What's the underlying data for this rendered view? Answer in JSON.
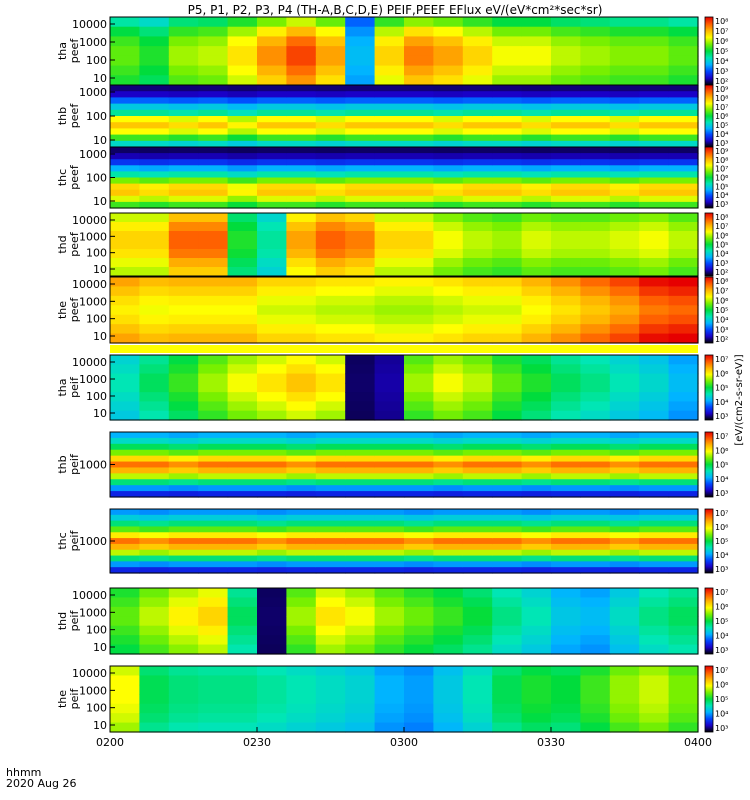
{
  "chart_data": {
    "type": "heatmap",
    "title": "P5, P1, P2, P3, P4 (TH-A,B,C,D,E) PEIF,PEEF EFlux eV/(eV*cm²*sec*sr)",
    "x_label_line1": "hhmm",
    "x_label_line2": "2020 Aug 26",
    "x_ticks": [
      "0200",
      "0230",
      "0300",
      "0330",
      "0400"
    ],
    "x_range": [
      "02:00",
      "04:00"
    ],
    "colorbar_label": "[eV/(cm2-s-sr-eV)]",
    "palette": [
      "#000000",
      "#1a00c8",
      "#0046ff",
      "#00b4ff",
      "#00e6b4",
      "#00dc3c",
      "#78f000",
      "#ffff00",
      "#ffb400",
      "#ff5a00",
      "#e60000"
    ],
    "panels": [
      {
        "label_top": "tha",
        "label_bottom": "peef",
        "y_ticks": [
          "10000",
          "1000",
          "100",
          "10"
        ],
        "y_scale": "log",
        "colorbar_ticks": [
          "10⁸",
          "10⁷",
          "10⁶",
          "10⁵",
          "10⁴",
          "10³",
          "10²"
        ],
        "columns": [
          0.55,
          0.5,
          0.6,
          0.62,
          0.7,
          0.8,
          0.88,
          0.78,
          0.3,
          0.72,
          0.82,
          0.78,
          0.72,
          0.66,
          0.66,
          0.62,
          0.6,
          0.58,
          0.58,
          0.55
        ],
        "rows": [
          0.75,
          0.9,
          1.0,
          1.05,
          1.05,
          1.0,
          0.95
        ]
      },
      {
        "label_top": "thb",
        "label_bottom": "peef",
        "y_ticks": [
          "1000",
          "100",
          "10"
        ],
        "y_scale": "log",
        "colorbar_ticks": [
          "10⁹",
          "10⁸",
          "10⁷",
          "10⁶",
          "10⁵",
          "10⁴",
          "10³"
        ],
        "columns": [
          0.5,
          0.5,
          0.48,
          0.5,
          0.46,
          0.5,
          0.5,
          0.48,
          0.5,
          0.5,
          0.5,
          0.48,
          0.5,
          0.5,
          0.48,
          0.5,
          0.5,
          0.48,
          0.5,
          0.5
        ],
        "rows": [
          0.12,
          0.2,
          0.45,
          0.68,
          0.85,
          1.4,
          1.55,
          1.4,
          1.1,
          0.75
        ]
      },
      {
        "label_top": "thc",
        "label_bottom": "peef",
        "y_ticks": [
          "1000",
          "100",
          "10"
        ],
        "y_scale": "log",
        "colorbar_ticks": [
          "10⁹",
          "10⁸",
          "10⁷",
          "10⁶",
          "10⁵",
          "10⁴",
          "10³"
        ],
        "columns": [
          0.5,
          0.48,
          0.5,
          0.5,
          0.46,
          0.5,
          0.5,
          0.48,
          0.5,
          0.5,
          0.5,
          0.48,
          0.5,
          0.5,
          0.48,
          0.5,
          0.5,
          0.48,
          0.5,
          0.5
        ],
        "rows": [
          0.1,
          0.18,
          0.35,
          0.6,
          0.82,
          1.2,
          1.5,
          1.55,
          1.35,
          1.1
        ]
      },
      {
        "label_top": "thd",
        "label_bottom": "peef",
        "y_ticks": [
          "10000",
          "1000",
          "100",
          "10"
        ],
        "y_scale": "log",
        "colorbar_ticks": [
          "10⁸",
          "10⁷",
          "10⁶",
          "10⁵",
          "10⁴",
          "10³",
          "10²"
        ],
        "columns": [
          0.72,
          0.72,
          0.85,
          0.85,
          0.5,
          0.4,
          0.78,
          0.85,
          0.82,
          0.72,
          0.72,
          0.66,
          0.62,
          0.6,
          0.64,
          0.62,
          0.62,
          0.64,
          0.66,
          0.62
        ],
        "rows": [
          0.92,
          1.0,
          1.05,
          1.05,
          1.02,
          0.95,
          0.9
        ]
      },
      {
        "label_top": "the",
        "label_bottom": "peef",
        "y_ticks": [
          "10000",
          "1000",
          "100",
          "10"
        ],
        "y_scale": "log",
        "colorbar_ticks": [
          "10⁸",
          "10⁷",
          "10⁶",
          "10⁵",
          "10⁴",
          "10³",
          "10²"
        ],
        "columns": [
          0.78,
          0.75,
          0.76,
          0.76,
          0.76,
          0.72,
          0.72,
          0.7,
          0.7,
          0.68,
          0.68,
          0.7,
          0.72,
          0.72,
          0.76,
          0.8,
          0.84,
          0.88,
          0.94,
          0.96
        ],
        "rows": [
          1.05,
          1.0,
          0.95,
          0.92,
          0.95,
          1.0,
          1.05
        ]
      },
      {
        "label_top": "tha",
        "label_bottom": "peif",
        "y_ticks": [
          "10000",
          "1000",
          "100",
          "10"
        ],
        "y_scale": "log",
        "colorbar_ticks": [
          "10⁷",
          "10⁶",
          "10⁵",
          "10⁴",
          "10³"
        ],
        "columns": [
          0.38,
          0.45,
          0.52,
          0.6,
          0.66,
          0.7,
          0.74,
          0.7,
          0.05,
          0.08,
          0.6,
          0.66,
          0.62,
          0.55,
          0.5,
          0.45,
          0.42,
          0.38,
          0.35,
          0.3
        ],
        "rows": [
          0.95,
          1.0,
          1.05,
          1.05,
          1.0,
          0.95,
          0.9
        ]
      },
      {
        "label_top": "thb",
        "label_bottom": "peif",
        "y_ticks": [
          "1000"
        ],
        "y_scale": "log",
        "colorbar_ticks": [
          "10⁷",
          "10⁶",
          "10⁵",
          "10⁴",
          "10³"
        ],
        "columns": [
          0.5,
          0.5,
          0.48,
          0.5,
          0.5,
          0.5,
          0.48,
          0.5,
          0.5,
          0.5,
          0.5,
          0.48,
          0.5,
          0.5,
          0.48,
          0.5,
          0.5,
          0.48,
          0.5,
          0.5
        ],
        "rows": [
          0.6,
          0.75,
          0.95,
          1.2,
          1.5,
          1.75,
          1.6,
          1.3,
          0.9,
          0.55,
          0.3
        ]
      },
      {
        "label_top": "thc",
        "label_bottom": "peif",
        "y_ticks": [
          "1000"
        ],
        "y_scale": "log",
        "colorbar_ticks": [
          "10⁷",
          "10⁶",
          "10⁵",
          "10⁴",
          "10³"
        ],
        "columns": [
          0.5,
          0.48,
          0.5,
          0.5,
          0.5,
          0.48,
          0.5,
          0.5,
          0.5,
          0.5,
          0.48,
          0.5,
          0.5,
          0.5,
          0.48,
          0.5,
          0.5,
          0.48,
          0.5,
          0.5
        ],
        "rows": [
          0.55,
          0.7,
          0.9,
          1.15,
          1.45,
          1.75,
          1.6,
          1.3,
          0.9,
          0.55,
          0.3
        ]
      },
      {
        "label_top": "thd",
        "label_bottom": "peif",
        "y_ticks": [
          "10000",
          "1000",
          "100",
          "10"
        ],
        "y_scale": "log",
        "colorbar_ticks": [
          "10⁷",
          "10⁶",
          "10⁵",
          "10⁴",
          "10³"
        ],
        "columns": [
          0.55,
          0.62,
          0.68,
          0.72,
          0.45,
          0.05,
          0.6,
          0.7,
          0.66,
          0.6,
          0.56,
          0.52,
          0.48,
          0.42,
          0.38,
          0.32,
          0.3,
          0.36,
          0.42,
          0.45
        ],
        "rows": [
          0.95,
          1.0,
          1.05,
          1.05,
          1.0,
          0.95,
          0.9
        ]
      },
      {
        "label_top": "the",
        "label_bottom": "peif",
        "y_ticks": [
          "10000",
          "1000",
          "100",
          "10"
        ],
        "y_scale": "log",
        "colorbar_ticks": [
          "10⁷",
          "10⁶",
          "10⁵",
          "10⁴",
          "10³"
        ],
        "columns": [
          0.7,
          0.48,
          0.45,
          0.44,
          0.44,
          0.42,
          0.4,
          0.38,
          0.36,
          0.3,
          0.28,
          0.34,
          0.4,
          0.48,
          0.52,
          0.5,
          0.55,
          0.62,
          0.66,
          0.6
        ],
        "rows": [
          0.95,
          1.0,
          1.0,
          1.0,
          0.98,
          0.95,
          0.9
        ]
      }
    ]
  }
}
